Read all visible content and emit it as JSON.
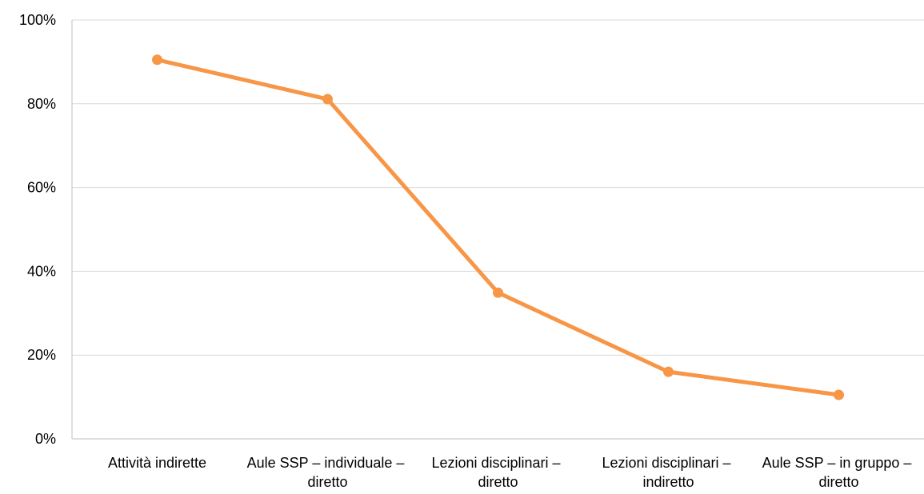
{
  "chart_data": {
    "type": "line",
    "categories": [
      "Attività indirette",
      "Aule SSP – individuale – diretto",
      "Lezioni disciplinari – diretto",
      "Lezioni disciplinari – indiretto",
      "Aule SSP – in gruppo – diretto"
    ],
    "series": [
      {
        "color": "#f79646",
        "values": [
          90.5,
          81.1,
          34.9,
          16.0,
          10.5
        ]
      }
    ],
    "ylim": [
      0,
      100
    ],
    "yticks": [
      {
        "value": 0,
        "label": "0%"
      },
      {
        "value": 20,
        "label": "20%"
      },
      {
        "value": 40,
        "label": "40%"
      },
      {
        "value": 60,
        "label": "60%"
      },
      {
        "value": 80,
        "label": "80%"
      },
      {
        "value": 100,
        "label": "100%"
      }
    ],
    "grid": true
  }
}
